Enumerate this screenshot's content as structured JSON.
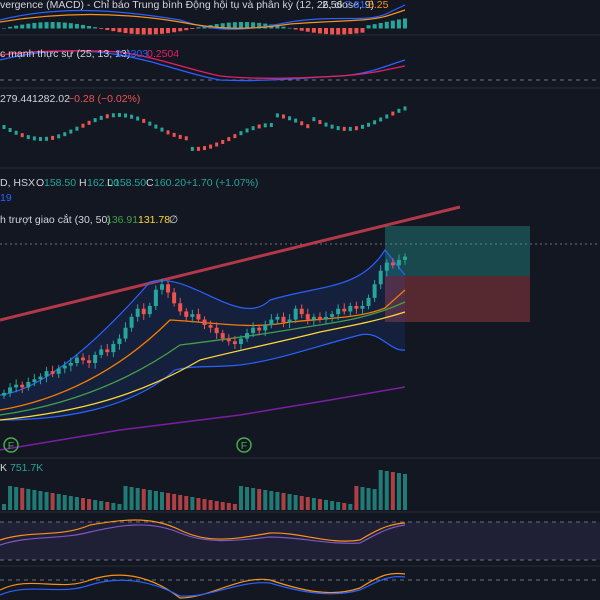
{
  "colors": {
    "bg": "#131722",
    "grid": "#1f2430",
    "up": "#26a69a",
    "down": "#ef5350",
    "text": "#d1d4dc",
    "blue": "#2962ff",
    "orange": "#f7931a"
  },
  "macd": {
    "title": "vergence (MACD) - Chỉ báo Trung bình Động hội tụ và phân kỳ (12, 26, close, 9)",
    "v1": "2.56",
    "v2": "7.81",
    "v3": "5.25",
    "c1": "#d1d4dc",
    "c2": "#2962ff",
    "c3": "#f7931a"
  },
  "tsi": {
    "title": "c mạnh thực sự (25, 13, 13)",
    "v1": "0.4303",
    "v2": "0.2504",
    "c1": "#2962ff",
    "c2": "#e91e63"
  },
  "index_pane": {
    "v1": "279.44",
    "v2": "1282.02",
    "v3": "−0.28 (−0.02%)",
    "c3": "#ef5350"
  },
  "main": {
    "symbol_line": "D, HSX",
    "o_label": "O",
    "o_val": "158.50",
    "h_label": "H",
    "h_val": "162.00",
    "l_label": "L",
    "l_val": "158.50",
    "c_label": "C",
    "c_val": "160.20",
    "change": "+1.70 (+1.07%)",
    "sub_value": "19",
    "ma_title": "h trượt giao cắt (30, 50)",
    "ma1": "136.91",
    "ma2": "131.78",
    "ma_empty": "∅"
  },
  "volume": {
    "label": "K",
    "value": "751.7K"
  },
  "markers": {
    "f1": "F",
    "f2": "F"
  },
  "chart_data": [
    {
      "type": "candlestick",
      "pane": "main price",
      "ohlc_last": {
        "open": 158.5,
        "high": 162.0,
        "low": 158.5,
        "close": 160.2
      },
      "close_approx": [
        110,
        112,
        113,
        112,
        114,
        115,
        116,
        118,
        117,
        119,
        120,
        121,
        123,
        122,
        121,
        124,
        126,
        125,
        128,
        130,
        134,
        138,
        141,
        139,
        142,
        148,
        150,
        147,
        143,
        140,
        138,
        139,
        137,
        135,
        134,
        132,
        130,
        129,
        128,
        130,
        132,
        134,
        133,
        135,
        137,
        138,
        136,
        137,
        141,
        139,
        137,
        138,
        137,
        138,
        139,
        141,
        140,
        142,
        141,
        142,
        145,
        150,
        155,
        158,
        157,
        159,
        160.2
      ],
      "moving_averages": {
        "ma30": 136.91,
        "ma50": 131.78
      }
    },
    {
      "type": "bar",
      "pane": "volume",
      "last_value": "751.7K"
    }
  ]
}
